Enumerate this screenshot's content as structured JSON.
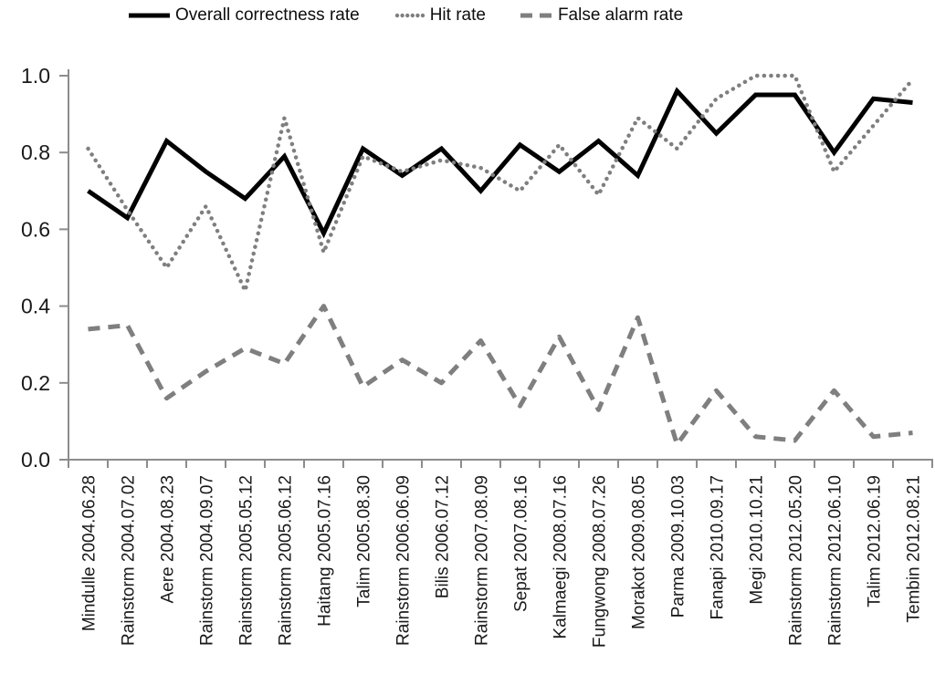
{
  "legend": {
    "items": [
      {
        "label": "Overall correctness rate",
        "series": "overall_correctness_rate",
        "style": "solid",
        "color": "#000000"
      },
      {
        "label": "Hit rate",
        "series": "hit_rate",
        "style": "dotted",
        "color": "#7f7f7f"
      },
      {
        "label": "False alarm rate",
        "series": "false_alarm_rate",
        "style": "dashed",
        "color": "#7f7f7f"
      }
    ]
  },
  "axes": {
    "y_tick_labels": [
      "0.0",
      "0.2",
      "0.4",
      "0.6",
      "0.8",
      "1.0"
    ],
    "axis_color": "#8c8c8c",
    "tick_label_color": "#1a1a1a"
  },
  "chart_data": {
    "type": "line",
    "title": "",
    "xlabel": "",
    "ylabel": "",
    "ylim": [
      0.0,
      1.0
    ],
    "y_tick_step": 0.2,
    "grid": false,
    "legend_position": "top",
    "categories": [
      "Mindulle 2004.06.28",
      "Rainstorm 2004.07.02",
      "Aere 2004.08.23",
      "Rainstorm 2004.09.07",
      "Rainstorm 2005.05.12",
      "Rainstorm 2005.06.12",
      "Haitang 2005.07.16",
      "Talim 2005.08.30",
      "Rainstorm 2006.06.09",
      "Bilis 2006.07.12",
      "Rainstorm 2007.08.09",
      "Sepat 2007.08.16",
      "Kalmaegi 2008.07.16",
      "Fungwong 2008.07.26",
      "Morakot 2009.08.05",
      "Parma 2009.10.03",
      "Fanapi 2010.09.17",
      "Megi 2010.10.21",
      "Rainstorm 2012.05.20",
      "Rainstorm 2012.06.10",
      "Talim 2012.06.19",
      "Tembin 2012.08.21"
    ],
    "series": [
      {
        "name": "Overall correctness rate",
        "style": "solid",
        "color": "#000000",
        "values": [
          0.7,
          0.63,
          0.83,
          0.75,
          0.68,
          0.79,
          0.59,
          0.81,
          0.74,
          0.81,
          0.7,
          0.82,
          0.75,
          0.83,
          0.74,
          0.96,
          0.85,
          0.95,
          0.95,
          0.8,
          0.94,
          0.93
        ]
      },
      {
        "name": "Hit rate",
        "style": "dotted",
        "color": "#7f7f7f",
        "values": [
          0.81,
          0.65,
          0.5,
          0.66,
          0.44,
          0.89,
          0.54,
          0.79,
          0.75,
          0.78,
          0.76,
          0.7,
          0.82,
          0.69,
          0.89,
          0.81,
          0.94,
          1.0,
          1.0,
          0.75,
          0.87,
          0.99
        ]
      },
      {
        "name": "False alarm rate",
        "style": "dashed",
        "color": "#7f7f7f",
        "values": [
          0.34,
          0.35,
          0.16,
          0.23,
          0.29,
          0.25,
          0.4,
          0.19,
          0.26,
          0.2,
          0.31,
          0.14,
          0.32,
          0.13,
          0.37,
          0.04,
          0.18,
          0.06,
          0.05,
          0.18,
          0.06,
          0.07
        ]
      }
    ]
  }
}
